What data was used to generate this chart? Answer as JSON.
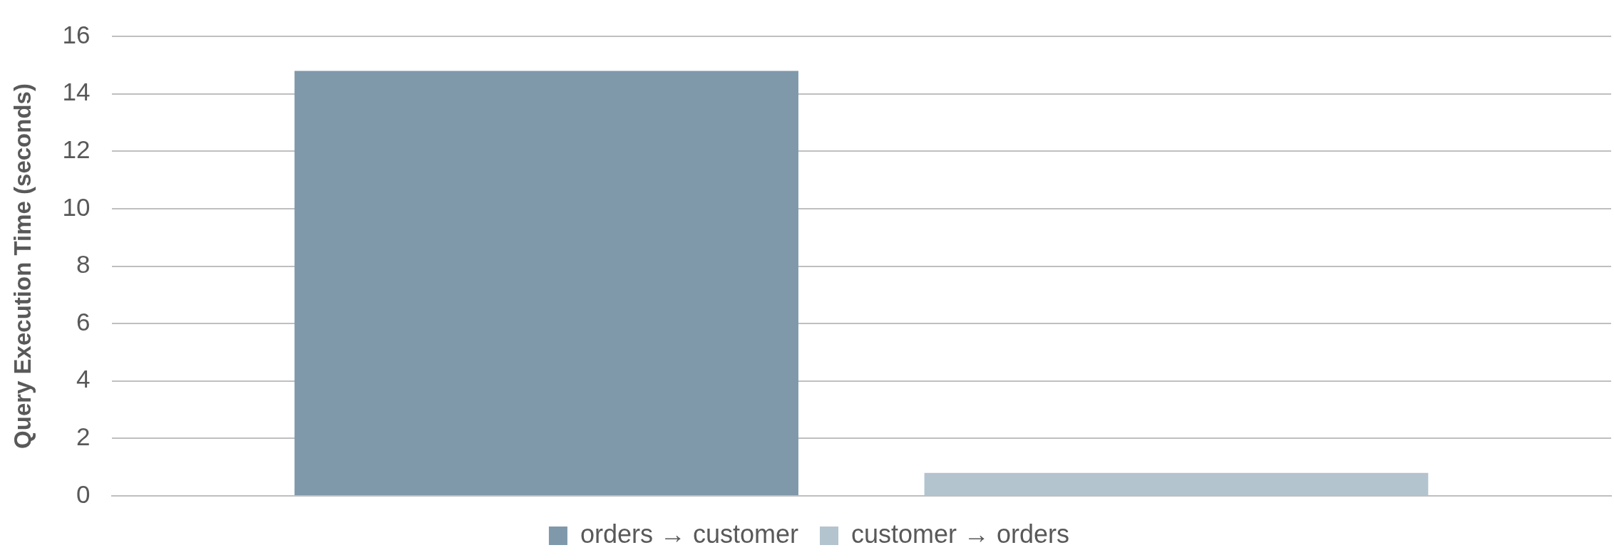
{
  "chart_data": {
    "type": "bar",
    "ylabel": "Query Execution Time (seconds)",
    "categories": [
      null
    ],
    "series": [
      {
        "name": "orders → customer",
        "color": "#7f98aa",
        "values": [
          14.8
        ]
      },
      {
        "name": "customer → orders",
        "color": "#b3c4cf",
        "values": [
          0.8
        ]
      }
    ],
    "ylim": [
      0,
      16
    ],
    "yticks": [
      0,
      2,
      4,
      6,
      8,
      10,
      12,
      14,
      16
    ],
    "grid": "y",
    "legend": "bottom"
  }
}
